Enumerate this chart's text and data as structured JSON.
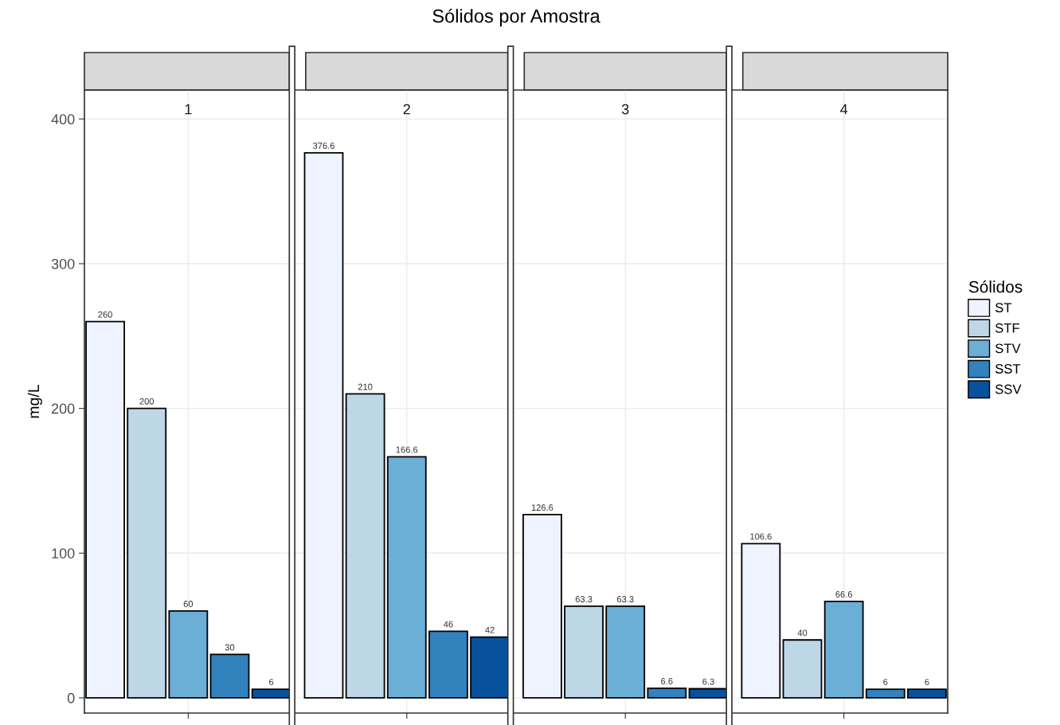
{
  "chart_data": {
    "type": "bar",
    "title": "Sólidos por Amostra",
    "ylabel": "mg/L",
    "categories": [
      "1",
      "2",
      "3",
      "4"
    ],
    "ylim": [
      -10.5,
      420
    ],
    "yticks": [
      0,
      100,
      200,
      300,
      400
    ],
    "grid": true,
    "data_labels": true,
    "legend": "right",
    "legend_title": "Sólidos",
    "series": [
      {
        "name": "ST",
        "color": "#eff3ff",
        "values": [
          260,
          376.6,
          126.6,
          106.6
        ]
      },
      {
        "name": "STF",
        "color": "#bdd7e7",
        "values": [
          200,
          210,
          63.3,
          40
        ]
      },
      {
        "name": "STV",
        "color": "#6baed6",
        "values": [
          60,
          166.6,
          63.3,
          66.6
        ]
      },
      {
        "name": "SST",
        "color": "#3182bd",
        "values": [
          30,
          46,
          6.6,
          6
        ]
      },
      {
        "name": "SSV",
        "color": "#08519c",
        "values": [
          6,
          42,
          6.3,
          6
        ]
      }
    ]
  }
}
